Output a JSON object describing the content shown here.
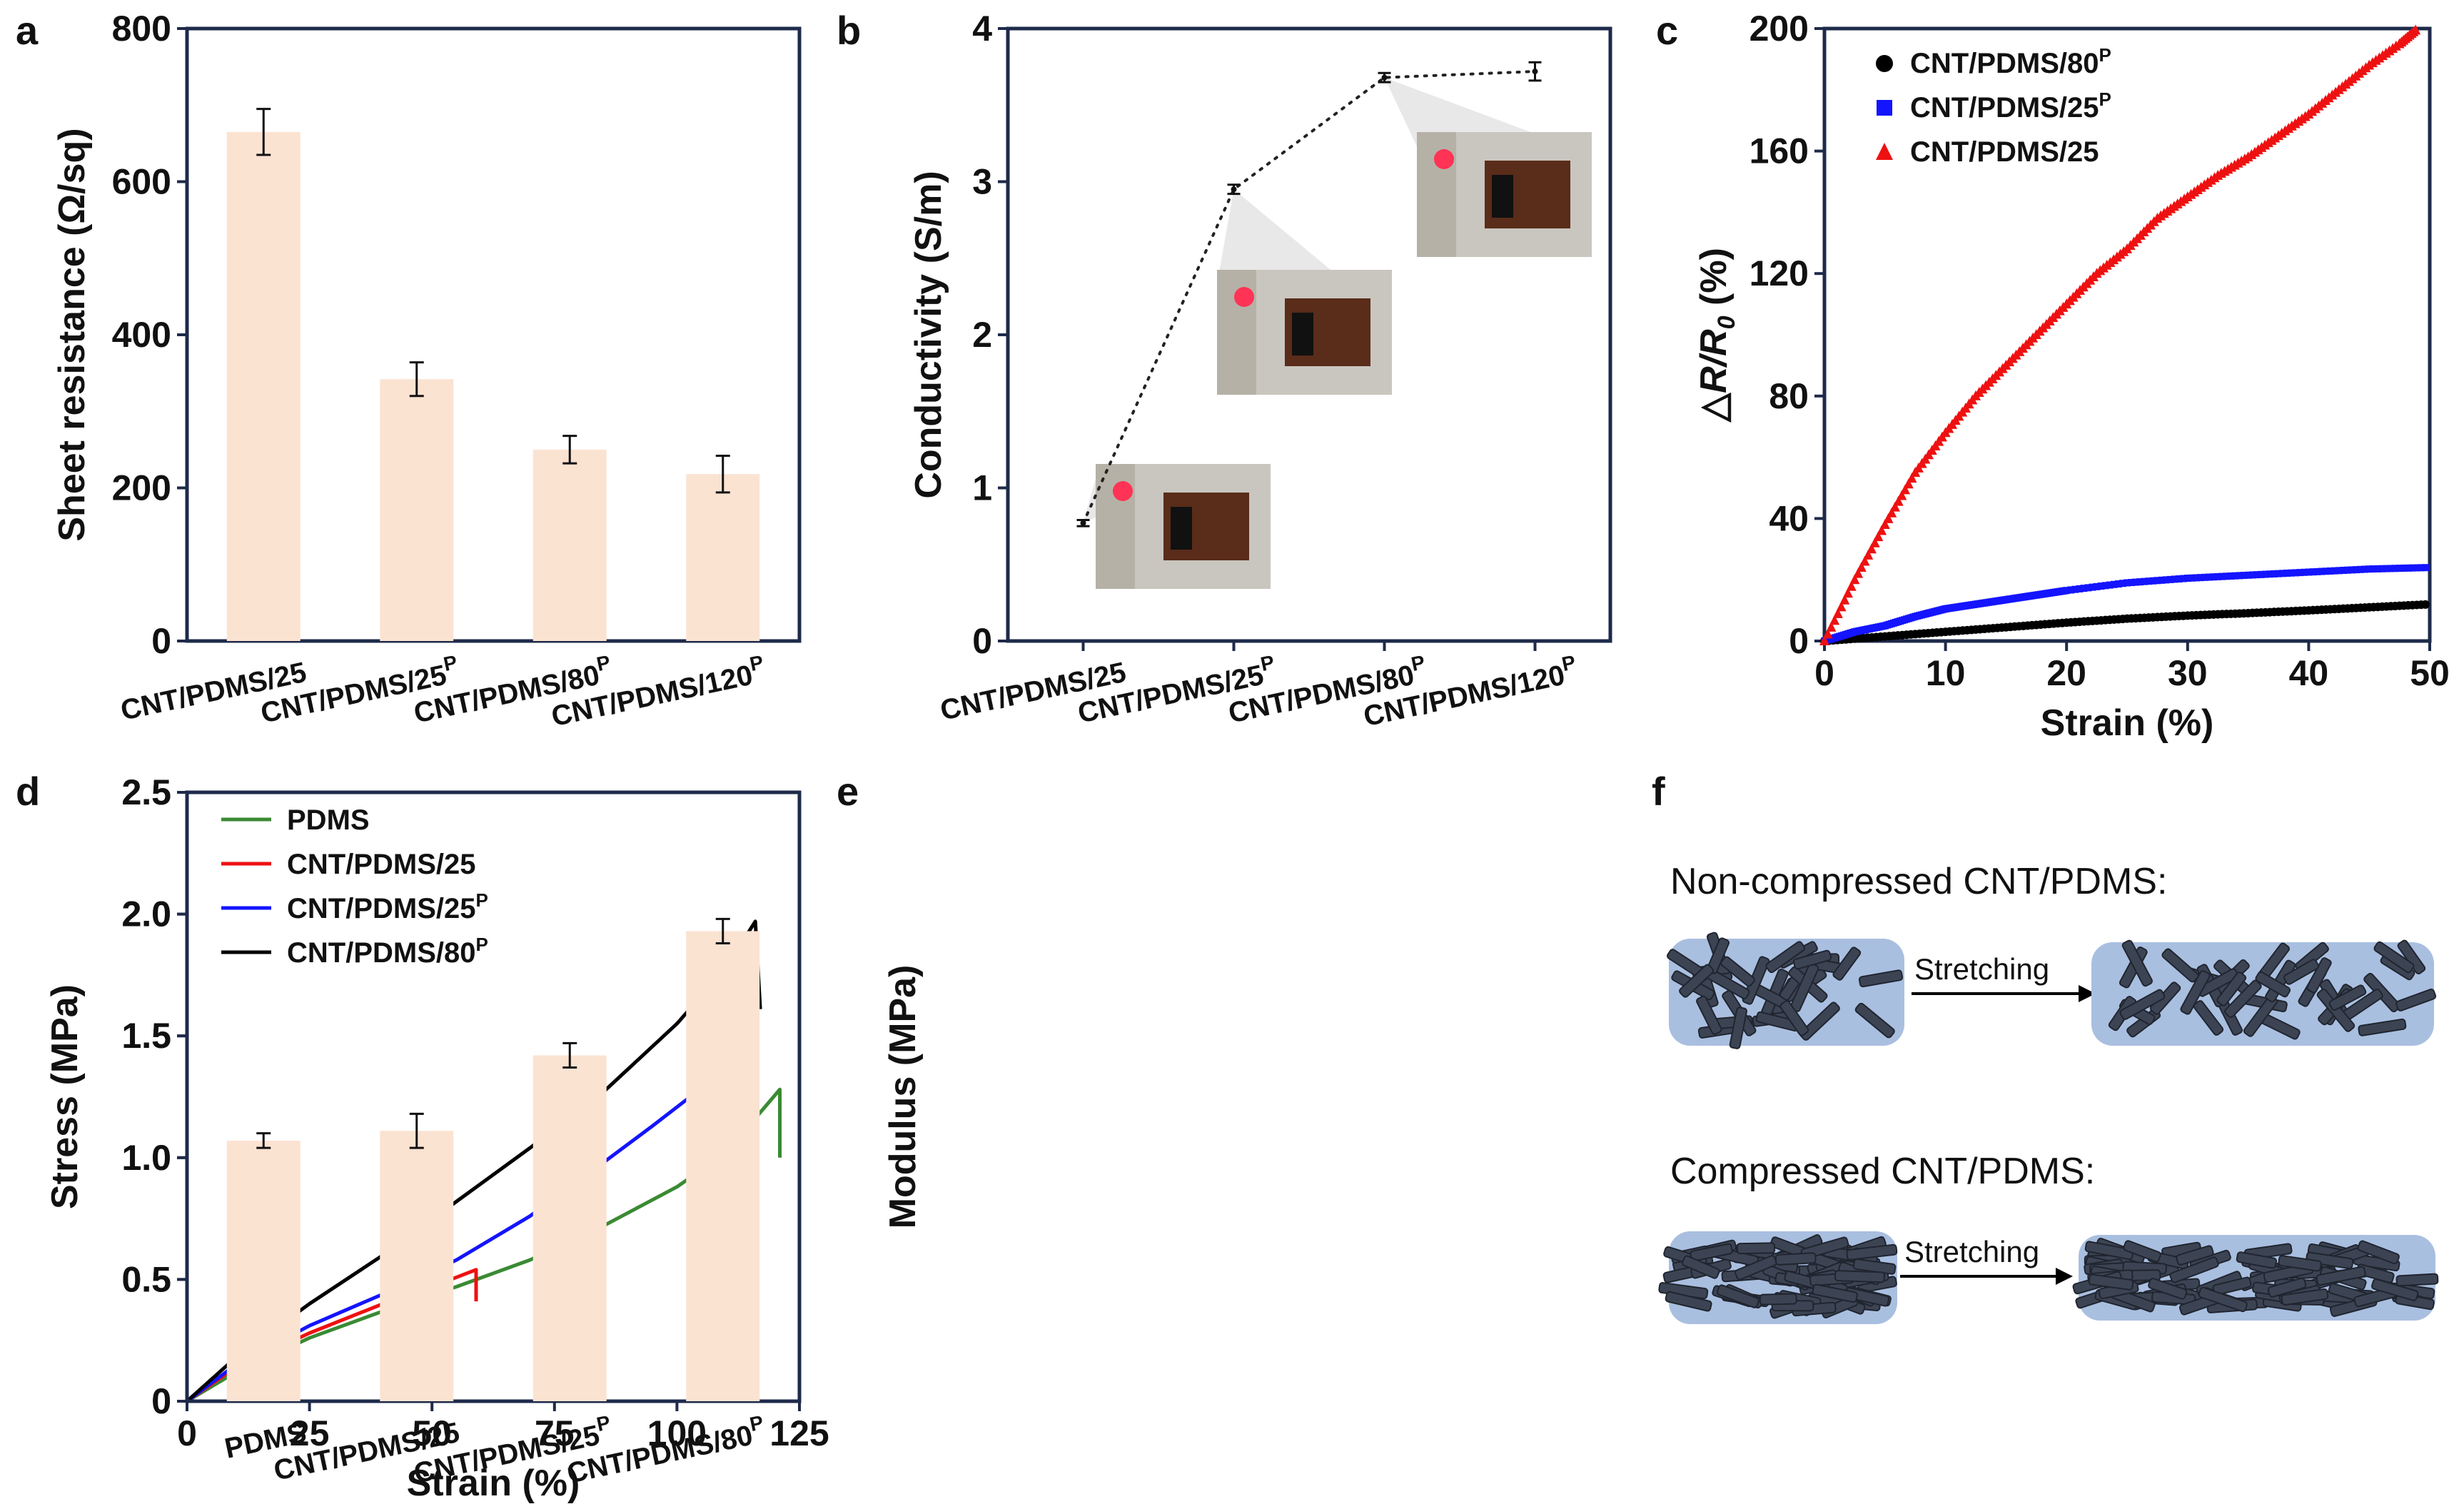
{
  "panels": {
    "a": "a",
    "b": "b",
    "c": "c",
    "d": "d",
    "e": "e",
    "f": "f"
  },
  "chart_data": [
    {
      "id": "a",
      "type": "bar",
      "categories": [
        "CNT/PDMS/25",
        "CNT/PDMS/25P",
        "CNT/PDMS/80P",
        "CNT/PDMS/120P"
      ],
      "values": [
        665,
        342,
        250,
        218
      ],
      "errors": [
        30,
        22,
        18,
        24
      ],
      "title": "",
      "xlabel": "",
      "ylabel": "Sheet resistance (Ω/sq)",
      "ylim": [
        0,
        800
      ],
      "yticks": [
        0,
        200,
        400,
        600,
        800
      ],
      "color": "#fbe3d2"
    },
    {
      "id": "b",
      "type": "scatter",
      "categories": [
        "CNT/PDMS/25",
        "CNT/PDMS/25P",
        "CNT/PDMS/80P",
        "CNT/PDMS/120P"
      ],
      "values": [
        0.77,
        2.95,
        3.68,
        3.72
      ],
      "errors": [
        0.02,
        0.03,
        0.03,
        0.06
      ],
      "title": "",
      "xlabel": "",
      "ylabel": "Conductivity (S/m)",
      "ylim": [
        0,
        4
      ],
      "yticks": [
        0,
        1,
        2,
        3,
        4
      ],
      "line": "dotted"
    },
    {
      "id": "c",
      "type": "scatter",
      "title": "",
      "xlabel": "Strain (%)",
      "ylabel": "△R/R0 (%)",
      "xlim": [
        0,
        50
      ],
      "ylim": [
        0,
        200
      ],
      "xticks": [
        0,
        10,
        20,
        30,
        40,
        50
      ],
      "yticks": [
        0,
        40,
        80,
        120,
        160,
        200
      ],
      "legend_position": "top-left",
      "series": [
        {
          "name": "CNT/PDMS/80P",
          "marker": "circle",
          "color": "#000000",
          "x": [
            0,
            5,
            10,
            15,
            20,
            25,
            30,
            35,
            40,
            45,
            50
          ],
          "y": [
            0,
            1.5,
            3,
            4.5,
            6,
            7.3,
            8.3,
            9.1,
            10,
            11,
            12
          ]
        },
        {
          "name": "CNT/PDMS/25P",
          "marker": "square",
          "color": "#1414ff",
          "x": [
            0,
            2.5,
            5,
            7.5,
            10,
            12.5,
            15,
            17.5,
            20,
            25,
            30,
            35,
            40,
            45,
            50
          ],
          "y": [
            0,
            3,
            5,
            8,
            10.5,
            12,
            13.5,
            15,
            16.5,
            19,
            20.5,
            21.5,
            22.5,
            23.5,
            24
          ]
        },
        {
          "name": "CNT/PDMS/25",
          "marker": "triangle",
          "color": "#ee1111",
          "x": [
            0,
            2.5,
            5,
            7.5,
            10,
            12.5,
            15,
            17.5,
            20,
            22.5,
            25,
            27.5,
            30,
            32.5,
            35,
            37.5,
            40,
            42.5,
            45,
            47.5,
            49
          ],
          "y": [
            0,
            20,
            38,
            55,
            68,
            80,
            90,
            100,
            110,
            120,
            128,
            138,
            145,
            152,
            158,
            165,
            172,
            180,
            188,
            195,
            200
          ]
        }
      ]
    },
    {
      "id": "d",
      "type": "line",
      "title": "",
      "xlabel": "Strain (%)",
      "ylabel": "Stress (MPa)",
      "xlim": [
        0,
        125
      ],
      "ylim": [
        0,
        2.5
      ],
      "xticks": [
        0,
        25,
        50,
        75,
        100,
        125
      ],
      "yticks": [
        0,
        0.5,
        1.0,
        1.5,
        2.0,
        2.5
      ],
      "ytick_labels": [
        "0",
        "0.5",
        "1.0",
        "1.5",
        "2.0",
        "2.5"
      ],
      "legend_position": "top-left",
      "series": [
        {
          "name": "PDMS",
          "color": "#3a8a33",
          "x": [
            0,
            10,
            25,
            40,
            55,
            70,
            85,
            100,
            110,
            121,
            121
          ],
          "y": [
            0,
            0.12,
            0.26,
            0.37,
            0.47,
            0.58,
            0.72,
            0.88,
            1.02,
            1.28,
            1.0
          ]
        },
        {
          "name": "CNT/PDMS/25",
          "color": "#ee1111",
          "x": [
            0,
            10,
            25,
            40,
            50,
            59,
            59
          ],
          "y": [
            0,
            0.14,
            0.28,
            0.4,
            0.47,
            0.54,
            0.41
          ]
        },
        {
          "name": "CNT/PDMS/25P",
          "color": "#1414ff",
          "x": [
            0,
            10,
            25,
            40,
            55,
            70,
            85,
            95,
            104,
            104
          ],
          "y": [
            0,
            0.15,
            0.31,
            0.44,
            0.58,
            0.76,
            0.98,
            1.13,
            1.27,
            1.0
          ]
        },
        {
          "name": "CNT/PDMS/80P",
          "color": "#000000",
          "x": [
            0,
            10,
            25,
            40,
            55,
            70,
            85,
            100,
            110,
            116,
            117
          ],
          "y": [
            0,
            0.18,
            0.4,
            0.6,
            0.82,
            1.04,
            1.27,
            1.55,
            1.78,
            1.97,
            1.61
          ]
        }
      ]
    },
    {
      "id": "e",
      "type": "bar",
      "categories": [
        "PDMS",
        "CNT/PDMS/25",
        "CNT/PDMS/25P",
        "CNT/PDMS/80P"
      ],
      "values": [
        1.07,
        1.11,
        1.42,
        1.93
      ],
      "errors": [
        0.03,
        0.07,
        0.05,
        0.05
      ],
      "title": "",
      "xlabel": "",
      "ylabel": "Modulus (MPa)",
      "ylim": [
        0,
        2.5
      ],
      "yticks": [
        0,
        0.5,
        1.0,
        1.5,
        2.0,
        2.5
      ],
      "ytick_labels": [
        "0",
        "0.5",
        "1.0",
        "1.5",
        "2.0",
        "2.5"
      ],
      "color": "#fbe3d2"
    }
  ],
  "schematic": {
    "title_noncompressed": "Non-compressed CNT/PDMS:",
    "title_compressed": "Compressed CNT/PDMS:",
    "arrow_label": "Stretching"
  }
}
